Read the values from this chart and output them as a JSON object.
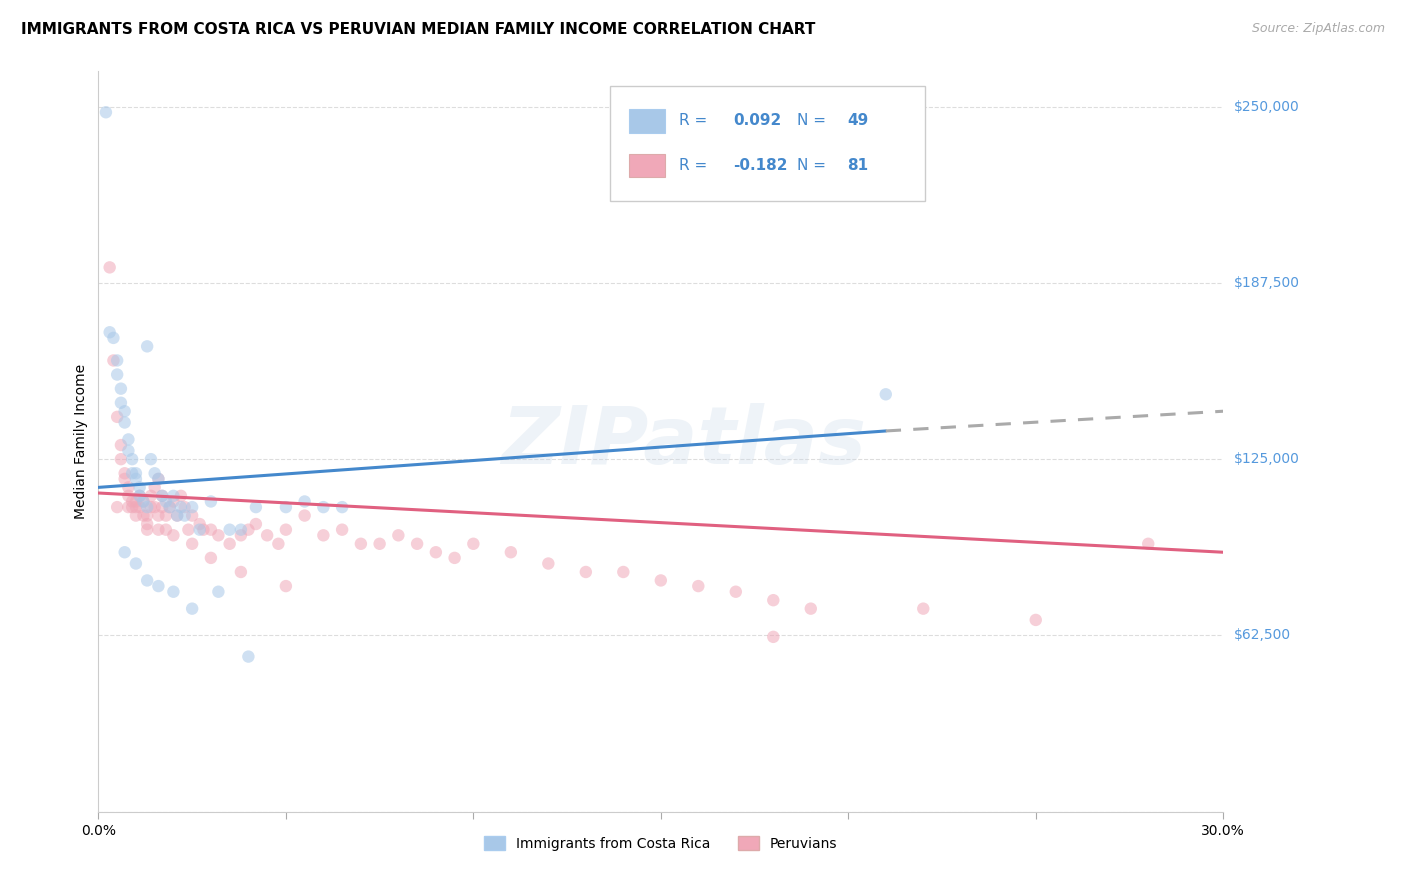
{
  "title": "IMMIGRANTS FROM COSTA RICA VS PERUVIAN MEDIAN FAMILY INCOME CORRELATION CHART",
  "source": "Source: ZipAtlas.com",
  "ylabel": "Median Family Income",
  "yticks": [
    0,
    62500,
    125000,
    187500,
    250000
  ],
  "ytick_labels": [
    "",
    "$62,500",
    "$125,000",
    "$187,500",
    "$250,000"
  ],
  "xlim": [
    0.0,
    0.3
  ],
  "ylim": [
    0,
    262500
  ],
  "color_blue": "#A8C8E8",
  "color_pink": "#F0A8B8",
  "color_blue_text": "#4488CC",
  "color_pink_text": "#E06080",
  "watermark": "ZIPatlas",
  "legend_label1": "Immigrants from Costa Rica",
  "legend_label2": "Peruvians",
  "blue_scatter_x": [
    0.002,
    0.013,
    0.003,
    0.004,
    0.005,
    0.005,
    0.006,
    0.006,
    0.007,
    0.007,
    0.008,
    0.008,
    0.009,
    0.009,
    0.01,
    0.01,
    0.011,
    0.011,
    0.012,
    0.013,
    0.014,
    0.015,
    0.016,
    0.017,
    0.018,
    0.019,
    0.02,
    0.021,
    0.022,
    0.023,
    0.025,
    0.027,
    0.03,
    0.035,
    0.038,
    0.042,
    0.05,
    0.055,
    0.06,
    0.065,
    0.007,
    0.01,
    0.013,
    0.016,
    0.02,
    0.025,
    0.032,
    0.04,
    0.21
  ],
  "blue_scatter_y": [
    248000,
    165000,
    170000,
    168000,
    160000,
    155000,
    150000,
    145000,
    142000,
    138000,
    132000,
    128000,
    125000,
    120000,
    120000,
    118000,
    115000,
    112000,
    110000,
    108000,
    125000,
    120000,
    118000,
    112000,
    110000,
    108000,
    112000,
    105000,
    108000,
    105000,
    108000,
    100000,
    110000,
    100000,
    100000,
    108000,
    108000,
    110000,
    108000,
    108000,
    92000,
    88000,
    82000,
    80000,
    78000,
    72000,
    78000,
    55000,
    148000
  ],
  "pink_scatter_x": [
    0.003,
    0.004,
    0.005,
    0.006,
    0.006,
    0.007,
    0.007,
    0.008,
    0.008,
    0.009,
    0.009,
    0.01,
    0.01,
    0.011,
    0.011,
    0.012,
    0.012,
    0.013,
    0.013,
    0.014,
    0.014,
    0.015,
    0.015,
    0.016,
    0.016,
    0.017,
    0.017,
    0.018,
    0.018,
    0.019,
    0.02,
    0.021,
    0.022,
    0.023,
    0.024,
    0.025,
    0.027,
    0.028,
    0.03,
    0.032,
    0.035,
    0.038,
    0.04,
    0.042,
    0.045,
    0.048,
    0.05,
    0.055,
    0.06,
    0.065,
    0.07,
    0.075,
    0.08,
    0.085,
    0.09,
    0.095,
    0.1,
    0.11,
    0.12,
    0.13,
    0.14,
    0.15,
    0.16,
    0.17,
    0.18,
    0.19,
    0.22,
    0.25,
    0.28,
    0.005,
    0.008,
    0.01,
    0.013,
    0.016,
    0.02,
    0.025,
    0.03,
    0.038,
    0.05,
    0.18
  ],
  "pink_scatter_y": [
    193000,
    160000,
    140000,
    130000,
    125000,
    120000,
    118000,
    115000,
    112000,
    110000,
    108000,
    108000,
    105000,
    112000,
    108000,
    110000,
    105000,
    102000,
    100000,
    108000,
    112000,
    115000,
    108000,
    118000,
    105000,
    112000,
    108000,
    105000,
    100000,
    108000,
    110000,
    105000,
    112000,
    108000,
    100000,
    105000,
    102000,
    100000,
    100000,
    98000,
    95000,
    98000,
    100000,
    102000,
    98000,
    95000,
    100000,
    105000,
    98000,
    100000,
    95000,
    95000,
    98000,
    95000,
    92000,
    90000,
    95000,
    92000,
    88000,
    85000,
    85000,
    82000,
    80000,
    78000,
    75000,
    72000,
    72000,
    68000,
    95000,
    108000,
    108000,
    110000,
    105000,
    100000,
    98000,
    95000,
    90000,
    85000,
    80000,
    62000
  ],
  "blue_line_x0": 0.0,
  "blue_line_x1": 0.21,
  "blue_line_x2": 0.3,
  "blue_line_y0": 115000,
  "blue_line_y1": 135000,
  "blue_line_y2": 142000,
  "pink_line_x0": 0.0,
  "pink_line_x1": 0.3,
  "pink_line_y0": 113000,
  "pink_line_y1": 92000,
  "background_color": "#FFFFFF",
  "grid_color": "#DDDDDD",
  "right_label_color": "#5599DD",
  "title_fontsize": 11,
  "axis_label_fontsize": 10,
  "tick_fontsize": 10,
  "scatter_size": 80,
  "scatter_alpha": 0.55,
  "line_width": 2.2
}
